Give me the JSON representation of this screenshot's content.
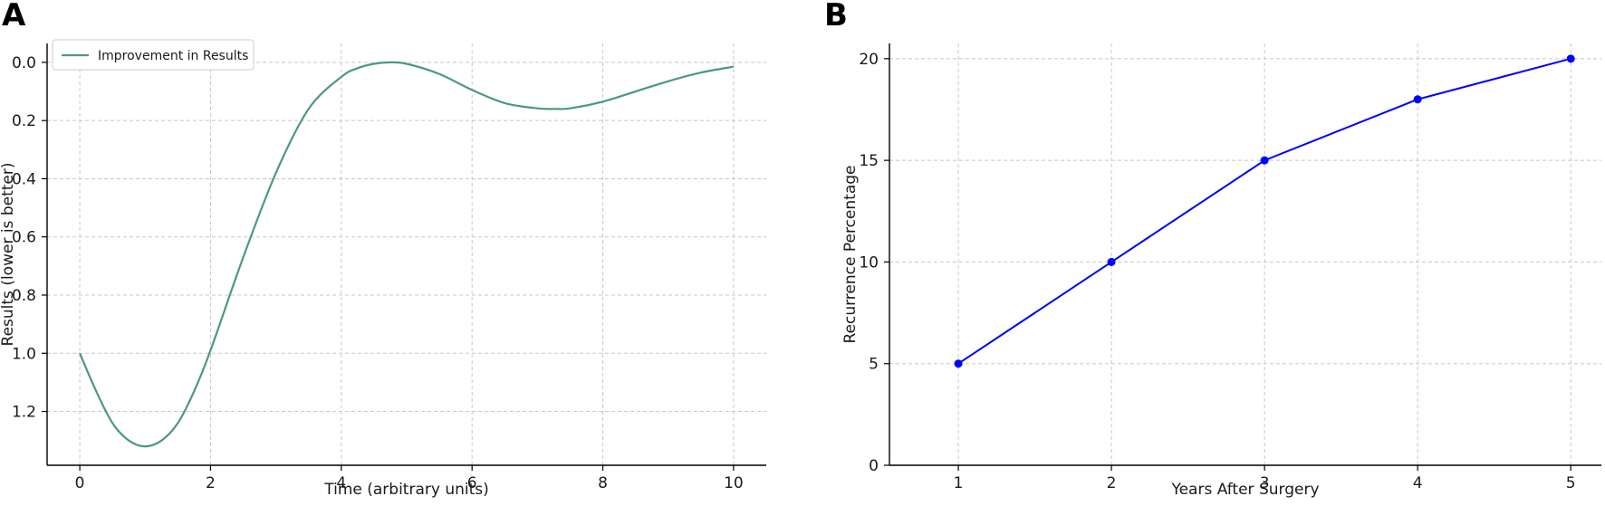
{
  "panels": {
    "a": {
      "letter": "A"
    },
    "b": {
      "letter": "B"
    }
  },
  "chart_data": [
    {
      "panel": "A",
      "type": "line",
      "title": "",
      "xlabel": "Time (arbitrary units)",
      "ylabel": "Results (lower is better)",
      "xlim": [
        -0.5,
        10.5
      ],
      "ylim": [
        1.385,
        -0.065
      ],
      "y_inverted": true,
      "xticks": [
        0,
        2,
        4,
        6,
        8,
        10
      ],
      "xtick_labels": [
        "0",
        "2",
        "4",
        "6",
        "8",
        "10"
      ],
      "yticks": [
        0.0,
        0.2,
        0.4,
        0.6,
        0.8,
        1.0,
        1.2
      ],
      "ytick_labels": [
        "0.0",
        "0.2",
        "0.4",
        "0.6",
        "0.8",
        "1.0",
        "1.2"
      ],
      "grid": true,
      "legend_position": "top-left",
      "series": [
        {
          "name": "Improvement in Results",
          "color": "#4c9a76",
          "x": [
            0,
            0.25,
            0.5,
            0.75,
            1.0,
            1.25,
            1.5,
            1.75,
            2.0,
            2.5,
            3.0,
            3.5,
            4.0,
            4.25,
            4.5,
            4.75,
            5.0,
            5.5,
            6.0,
            6.5,
            7.0,
            7.25,
            7.5,
            8.0,
            8.5,
            9.0,
            9.5,
            10.0
          ],
          "y": [
            1.0,
            1.13,
            1.24,
            1.3,
            1.32,
            1.3,
            1.24,
            1.13,
            0.99,
            0.67,
            0.38,
            0.16,
            0.05,
            0.02,
            0.005,
            0.0,
            0.005,
            0.04,
            0.095,
            0.14,
            0.158,
            0.16,
            0.158,
            0.135,
            0.1,
            0.065,
            0.035,
            0.015
          ]
        }
      ]
    },
    {
      "panel": "B",
      "type": "line",
      "title": "",
      "xlabel": "Years After Surgery",
      "ylabel": "Recurrence Percentage",
      "xlim": [
        0.55,
        5.2
      ],
      "ylim": [
        0,
        20.75
      ],
      "xticks": [
        1,
        2,
        3,
        4,
        5
      ],
      "xtick_labels": [
        "1",
        "2",
        "3",
        "4",
        "5"
      ],
      "yticks": [
        0,
        5,
        10,
        15,
        20
      ],
      "ytick_labels": [
        "0",
        "5",
        "10",
        "15",
        "20"
      ],
      "grid": true,
      "series": [
        {
          "color": "#0000ff",
          "marker": "circle",
          "x": [
            1,
            2,
            3,
            4,
            5
          ],
          "y": [
            5,
            10,
            15,
            18,
            20
          ]
        }
      ]
    }
  ]
}
